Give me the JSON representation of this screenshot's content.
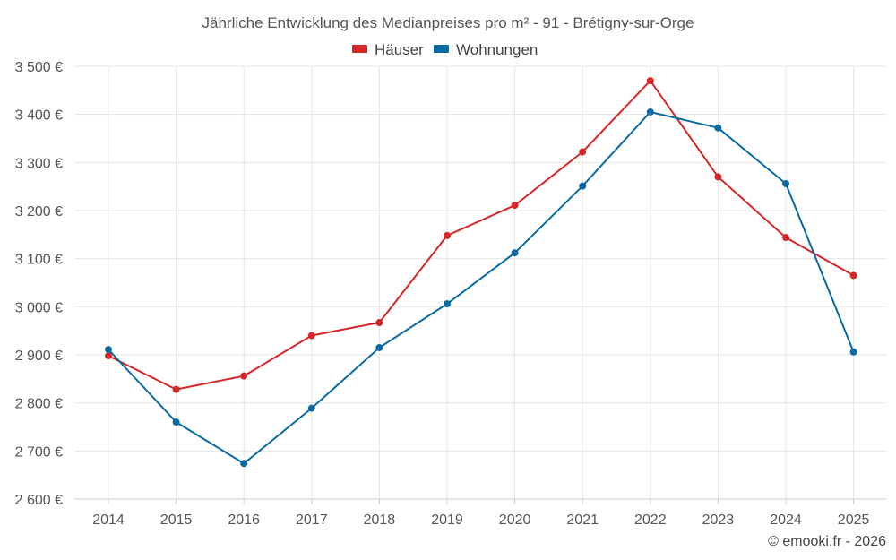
{
  "chart_data": {
    "type": "line",
    "title": "Jährliche Entwicklung des Medianpreises pro m² - 91 - Brétigny-sur-Orge",
    "categories": [
      "2014",
      "2015",
      "2016",
      "2017",
      "2018",
      "2019",
      "2020",
      "2021",
      "2022",
      "2023",
      "2024",
      "2025"
    ],
    "series": [
      {
        "name": "Häuser",
        "color": "#d62728",
        "values": [
          2898,
          2828,
          2856,
          2940,
          2967,
          3148,
          3211,
          3322,
          3470,
          3270,
          3144,
          3065
        ]
      },
      {
        "name": "Wohnungen",
        "color": "#0a6aa1",
        "values": [
          2911,
          2760,
          2674,
          2789,
          2915,
          3006,
          3112,
          3251,
          3405,
          3372,
          3256,
          2906
        ]
      }
    ],
    "ylim": [
      2600,
      3500
    ],
    "yticks": [
      2600,
      2700,
      2800,
      2900,
      3000,
      3100,
      3200,
      3300,
      3400,
      3500
    ],
    "ytick_labels": [
      "2 600 €",
      "2 700 €",
      "2 800 €",
      "2 900 €",
      "3 000 €",
      "3 100 €",
      "3 200 €",
      "3 300 €",
      "3 400 €",
      "3 500 €"
    ],
    "xlabel": "",
    "ylabel": "",
    "grid": true,
    "legend_position": "top-center"
  },
  "credit": "© emooki.fr - 2026"
}
